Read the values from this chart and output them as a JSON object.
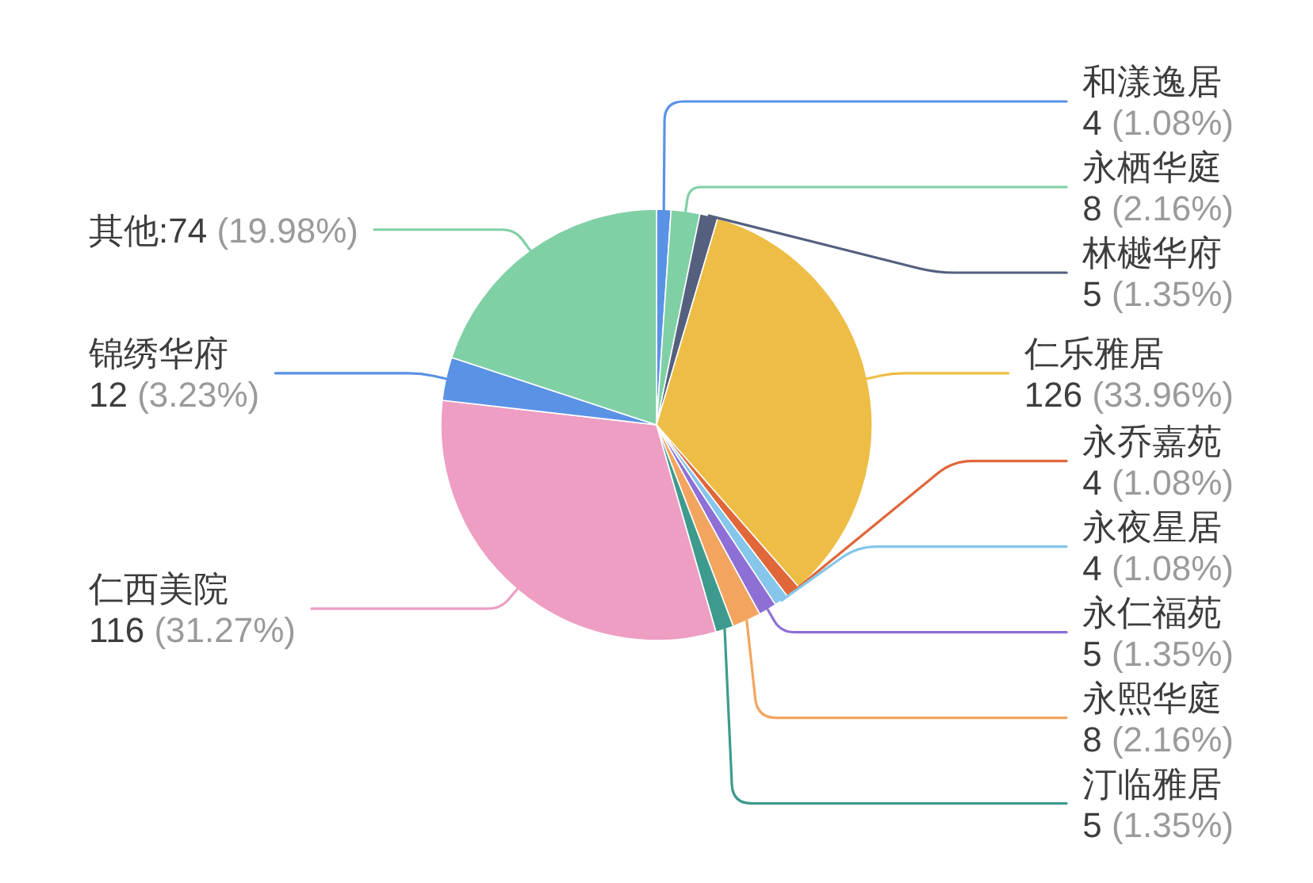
{
  "chart_data": {
    "type": "pie",
    "categories": [
      "和漾逸居",
      "永栖华庭",
      "林樾华府",
      "仁乐雅居",
      "永乔嘉苑",
      "永夜星居",
      "永仁福苑",
      "永熙华庭",
      "汀临雅居",
      "仁西美院",
      "锦绣华府",
      "其他"
    ],
    "values": [
      4,
      8,
      5,
      126,
      4,
      4,
      5,
      8,
      5,
      116,
      12,
      74
    ],
    "colors": [
      "#5a92e6",
      "#80d0a6",
      "#55607e",
      "#edbd45",
      "#e0673a",
      "#85c6ea",
      "#8e6fd6",
      "#f3a55f",
      "#3d9b8d",
      "#ee9ec3",
      "#5a92e6",
      "#80d0a6"
    ],
    "value_labels": [
      "\n4 (1.08%)",
      "\n8 (2.16%)",
      "\n5 (1.35%)",
      "\n126 (33.96%)",
      "\n4 (1.08%)",
      "\n4 (1.08%)",
      "\n5 (1.35%)",
      "\n8 (2.16%)",
      "\n5 (1.35%)",
      "\n116 (31.27%)",
      "\n12 (3.23%)",
      ":74 (19.98%)"
    ]
  }
}
